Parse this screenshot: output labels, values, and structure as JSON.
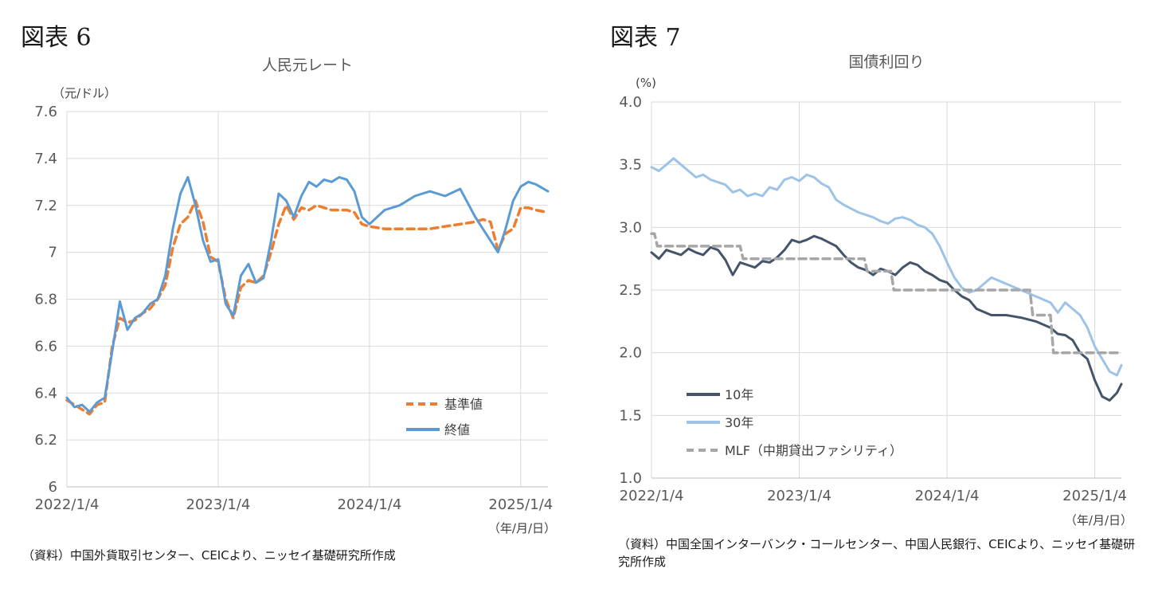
{
  "left": {
    "fig_label": "図表 6",
    "source": "（資料）中国外貨取引センター、CEICより、ニッセイ基礎研究所作成"
  },
  "right": {
    "fig_label": "図表 7",
    "source": "（資料）中国全国インターバンク・コールセンター、中国人民銀行、CEICより、ニッセイ基礎研究所作成"
  },
  "chart_data": [
    {
      "type": "line",
      "title": "人民元レート",
      "ylabel": "（元/ドル）",
      "xlabel": "（年/月/日）",
      "ylim": [
        6,
        7.6
      ],
      "yticks": [
        6,
        6.2,
        6.4,
        6.6,
        6.8,
        7,
        7.2,
        7.4,
        7.6
      ],
      "ytick_labels": [
        "6",
        "6.2",
        "6.4",
        "6.6",
        "6.8",
        "7",
        "7.2",
        "7.4",
        "7.6"
      ],
      "xlim": [
        2022.0,
        2025.18
      ],
      "xticks": [
        2022.0,
        2023.0,
        2024.0,
        2025.0
      ],
      "xtick_labels": [
        "2022/1/4",
        "2023/1/4",
        "2024/1/4",
        "2025/1/4"
      ],
      "grid": true,
      "legend_position": "lower-right",
      "series": [
        {
          "name": "基準値",
          "color": "#ED7D31",
          "style": "dashed",
          "x": [
            2022.0,
            2022.05,
            2022.1,
            2022.15,
            2022.2,
            2022.25,
            2022.3,
            2022.35,
            2022.4,
            2022.45,
            2022.5,
            2022.55,
            2022.6,
            2022.65,
            2022.7,
            2022.75,
            2022.8,
            2022.85,
            2022.9,
            2022.95,
            2023.0,
            2023.05,
            2023.1,
            2023.15,
            2023.2,
            2023.25,
            2023.3,
            2023.35,
            2023.4,
            2023.45,
            2023.5,
            2023.55,
            2023.6,
            2023.65,
            2023.7,
            2023.75,
            2023.8,
            2023.85,
            2023.9,
            2023.95,
            2024.0,
            2024.1,
            2024.2,
            2024.3,
            2024.4,
            2024.5,
            2024.6,
            2024.7,
            2024.75,
            2024.8,
            2024.85,
            2024.9,
            2024.95,
            2025.0,
            2025.05,
            2025.1,
            2025.18
          ],
          "y": [
            6.37,
            6.35,
            6.33,
            6.31,
            6.35,
            6.36,
            6.6,
            6.72,
            6.7,
            6.71,
            6.74,
            6.76,
            6.8,
            6.86,
            7.02,
            7.12,
            7.15,
            7.22,
            7.13,
            6.98,
            6.96,
            6.8,
            6.72,
            6.85,
            6.88,
            6.87,
            6.9,
            7.0,
            7.12,
            7.2,
            7.14,
            7.19,
            7.18,
            7.2,
            7.19,
            7.18,
            7.18,
            7.18,
            7.17,
            7.12,
            7.11,
            7.1,
            7.1,
            7.1,
            7.1,
            7.11,
            7.12,
            7.13,
            7.14,
            7.13,
            7.01,
            7.08,
            7.1,
            7.19,
            7.19,
            7.18,
            7.17
          ]
        },
        {
          "name": "終値",
          "color": "#5B9BD5",
          "style": "solid",
          "x": [
            2022.0,
            2022.05,
            2022.1,
            2022.15,
            2022.2,
            2022.25,
            2022.3,
            2022.35,
            2022.4,
            2022.45,
            2022.5,
            2022.55,
            2022.6,
            2022.65,
            2022.7,
            2022.75,
            2022.8,
            2022.85,
            2022.9,
            2022.95,
            2023.0,
            2023.05,
            2023.1,
            2023.15,
            2023.2,
            2023.25,
            2023.3,
            2023.35,
            2023.4,
            2023.45,
            2023.5,
            2023.55,
            2023.6,
            2023.65,
            2023.7,
            2023.75,
            2023.8,
            2023.85,
            2023.9,
            2023.95,
            2024.0,
            2024.1,
            2024.2,
            2024.3,
            2024.4,
            2024.5,
            2024.6,
            2024.7,
            2024.75,
            2024.8,
            2024.85,
            2024.9,
            2024.95,
            2025.0,
            2025.05,
            2025.1,
            2025.18
          ],
          "y": [
            6.38,
            6.34,
            6.35,
            6.32,
            6.36,
            6.38,
            6.58,
            6.79,
            6.67,
            6.72,
            6.74,
            6.78,
            6.8,
            6.9,
            7.1,
            7.25,
            7.32,
            7.2,
            7.05,
            6.96,
            6.97,
            6.78,
            6.73,
            6.9,
            6.95,
            6.87,
            6.89,
            7.05,
            7.25,
            7.22,
            7.15,
            7.24,
            7.3,
            7.28,
            7.31,
            7.3,
            7.32,
            7.31,
            7.26,
            7.15,
            7.12,
            7.18,
            7.2,
            7.24,
            7.26,
            7.24,
            7.27,
            7.15,
            7.1,
            7.05,
            7.0,
            7.1,
            7.22,
            7.28,
            7.3,
            7.29,
            7.26
          ]
        }
      ]
    },
    {
      "type": "line",
      "title": "国債利回り",
      "ylabel": "(%)",
      "xlabel": "（年/月/日）",
      "ylim": [
        1.0,
        4.0
      ],
      "yticks": [
        1.0,
        1.5,
        2.0,
        2.5,
        3.0,
        3.5,
        4.0
      ],
      "ytick_labels": [
        "1.0",
        "1.5",
        "2.0",
        "2.5",
        "3.0",
        "3.5",
        "4.0"
      ],
      "xlim": [
        2022.0,
        2025.18
      ],
      "xticks": [
        2022.0,
        2023.0,
        2024.0,
        2025.0
      ],
      "xtick_labels": [
        "2022/1/4",
        "2023/1/4",
        "2024/1/4",
        "2025/1/4"
      ],
      "grid": true,
      "legend_position": "lower-left",
      "series": [
        {
          "name": "10年",
          "color": "#44546A",
          "style": "solid",
          "x": [
            2022.0,
            2022.05,
            2022.1,
            2022.15,
            2022.2,
            2022.25,
            2022.3,
            2022.35,
            2022.4,
            2022.45,
            2022.5,
            2022.55,
            2022.6,
            2022.65,
            2022.7,
            2022.75,
            2022.8,
            2022.85,
            2022.9,
            2022.95,
            2023.0,
            2023.05,
            2023.1,
            2023.15,
            2023.2,
            2023.25,
            2023.3,
            2023.35,
            2023.4,
            2023.45,
            2023.5,
            2023.55,
            2023.6,
            2023.65,
            2023.7,
            2023.75,
            2023.8,
            2023.85,
            2023.9,
            2023.95,
            2024.0,
            2024.05,
            2024.1,
            2024.15,
            2024.2,
            2024.3,
            2024.4,
            2024.5,
            2024.6,
            2024.7,
            2024.75,
            2024.8,
            2024.85,
            2024.9,
            2024.95,
            2025.0,
            2025.05,
            2025.1,
            2025.15,
            2025.18
          ],
          "y": [
            2.8,
            2.75,
            2.82,
            2.8,
            2.78,
            2.83,
            2.8,
            2.78,
            2.84,
            2.82,
            2.74,
            2.62,
            2.72,
            2.7,
            2.68,
            2.73,
            2.72,
            2.76,
            2.82,
            2.9,
            2.88,
            2.9,
            2.93,
            2.91,
            2.88,
            2.85,
            2.78,
            2.72,
            2.68,
            2.66,
            2.62,
            2.67,
            2.65,
            2.62,
            2.68,
            2.72,
            2.7,
            2.65,
            2.62,
            2.58,
            2.56,
            2.5,
            2.45,
            2.42,
            2.35,
            2.3,
            2.3,
            2.28,
            2.25,
            2.2,
            2.15,
            2.14,
            2.1,
            2.0,
            1.95,
            1.78,
            1.65,
            1.62,
            1.68,
            1.75
          ]
        },
        {
          "name": "30年",
          "color": "#9DC3E6",
          "style": "solid",
          "x": [
            2022.0,
            2022.05,
            2022.1,
            2022.15,
            2022.2,
            2022.25,
            2022.3,
            2022.35,
            2022.4,
            2022.45,
            2022.5,
            2022.55,
            2022.6,
            2022.65,
            2022.7,
            2022.75,
            2022.8,
            2022.85,
            2022.9,
            2022.95,
            2023.0,
            2023.05,
            2023.1,
            2023.15,
            2023.2,
            2023.25,
            2023.3,
            2023.35,
            2023.4,
            2023.45,
            2023.5,
            2023.55,
            2023.6,
            2023.65,
            2023.7,
            2023.75,
            2023.8,
            2023.85,
            2023.9,
            2023.95,
            2024.0,
            2024.05,
            2024.1,
            2024.15,
            2024.2,
            2024.3,
            2024.4,
            2024.5,
            2024.6,
            2024.7,
            2024.75,
            2024.8,
            2024.85,
            2024.9,
            2024.95,
            2025.0,
            2025.05,
            2025.1,
            2025.15,
            2025.18
          ],
          "y": [
            3.48,
            3.45,
            3.5,
            3.55,
            3.5,
            3.45,
            3.4,
            3.42,
            3.38,
            3.36,
            3.34,
            3.28,
            3.3,
            3.25,
            3.27,
            3.25,
            3.32,
            3.3,
            3.38,
            3.4,
            3.37,
            3.42,
            3.4,
            3.35,
            3.32,
            3.22,
            3.18,
            3.15,
            3.12,
            3.1,
            3.08,
            3.05,
            3.03,
            3.07,
            3.08,
            3.06,
            3.02,
            3.0,
            2.95,
            2.85,
            2.72,
            2.6,
            2.52,
            2.48,
            2.5,
            2.6,
            2.55,
            2.5,
            2.45,
            2.4,
            2.32,
            2.4,
            2.35,
            2.3,
            2.2,
            2.05,
            1.95,
            1.85,
            1.82,
            1.9
          ]
        },
        {
          "name": "MLF（中期貸出ファシリティ）",
          "color": "#A6A6A6",
          "style": "dashed",
          "step": true,
          "x": [
            2022.0,
            2022.02,
            2022.04,
            2022.6,
            2022.62,
            2023.44,
            2023.46,
            2023.62,
            2023.64,
            2024.56,
            2024.58,
            2024.7,
            2024.72,
            2025.18
          ],
          "y": [
            2.95,
            2.95,
            2.85,
            2.85,
            2.75,
            2.75,
            2.65,
            2.65,
            2.5,
            2.5,
            2.3,
            2.3,
            2.0,
            2.0
          ]
        }
      ]
    }
  ]
}
